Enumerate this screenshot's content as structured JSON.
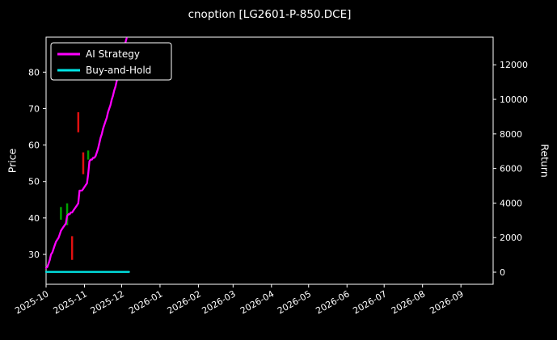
{
  "chart_data": {
    "type": "line",
    "title": "cnoption [LG2601-P-850.DCE]",
    "ylabel_left": "Price",
    "ylabel_right": "Return",
    "background_color": "#000000",
    "axis_color": "#ffffff",
    "grid": false,
    "legend_position": "upper-left",
    "x_tick_labels": [
      "2025-10",
      "2025-11",
      "2025-12",
      "2026-01",
      "2026-02",
      "2026-03",
      "2026-04",
      "2026-05",
      "2026-06",
      "2026-07",
      "2026-08",
      "2026-09"
    ],
    "x_tick_days": [
      0,
      31,
      61,
      92,
      123,
      151,
      182,
      212,
      243,
      273,
      304,
      335
    ],
    "x_domain_days": [
      0,
      361
    ],
    "ylim_left": [
      21.8,
      89.6
    ],
    "yticks_left": [
      30,
      40,
      50,
      60,
      70,
      80
    ],
    "ylim_right": [
      -700,
      13600
    ],
    "yticks_right": [
      0,
      2000,
      4000,
      6000,
      8000,
      10000,
      12000
    ],
    "legend": [
      {
        "label": "AI Strategy",
        "color": "#ff00ff"
      },
      {
        "label": "Buy-and-Hold",
        "color": "#00e5e5"
      }
    ],
    "series": [
      {
        "name": "AI Strategy",
        "color": "#ff00ff",
        "points": [
          [
            0,
            26.3
          ],
          [
            1,
            26.5
          ],
          [
            2,
            27.5
          ],
          [
            3,
            28.5
          ],
          [
            4,
            30
          ],
          [
            5,
            30.5
          ],
          [
            6,
            31.5
          ],
          [
            7,
            32.5
          ],
          [
            8,
            33.5
          ],
          [
            9,
            34
          ],
          [
            10,
            34.5
          ],
          [
            11,
            35.5
          ],
          [
            12,
            36.5
          ],
          [
            13,
            37
          ],
          [
            14,
            37.5
          ],
          [
            15,
            38
          ],
          [
            16,
            38.5
          ],
          [
            17,
            40.5
          ],
          [
            18,
            41
          ],
          [
            19,
            41
          ],
          [
            20,
            41.5
          ],
          [
            21,
            41.5
          ],
          [
            22,
            42
          ],
          [
            23,
            42.5
          ],
          [
            24,
            43
          ],
          [
            25,
            43.5
          ],
          [
            26,
            44
          ],
          [
            27,
            47.5
          ],
          [
            28,
            47.5
          ],
          [
            29,
            47.5
          ],
          [
            30,
            48
          ],
          [
            31,
            48.5
          ],
          [
            32,
            49
          ],
          [
            33,
            49.5
          ],
          [
            34,
            52
          ],
          [
            35,
            55.5
          ],
          [
            36,
            56
          ],
          [
            37,
            56
          ],
          [
            38,
            56.5
          ],
          [
            39,
            56.5
          ],
          [
            40,
            57
          ],
          [
            41,
            58
          ],
          [
            42,
            59
          ],
          [
            43,
            60.5
          ],
          [
            44,
            62
          ],
          [
            45,
            63
          ],
          [
            46,
            64.5
          ],
          [
            47,
            65.5
          ],
          [
            48,
            66.5
          ],
          [
            49,
            67.5
          ],
          [
            50,
            69
          ],
          [
            51,
            70
          ],
          [
            52,
            71
          ],
          [
            53,
            72.5
          ],
          [
            54,
            73.5
          ],
          [
            55,
            75
          ],
          [
            56,
            76
          ],
          [
            57,
            77.5
          ],
          [
            58,
            79
          ],
          [
            59,
            80.5
          ],
          [
            60,
            82
          ],
          [
            61,
            83.5
          ],
          [
            62,
            85
          ],
          [
            63,
            86.5
          ],
          [
            64,
            88
          ],
          [
            65,
            89.3
          ]
        ]
      },
      {
        "name": "Buy-and-Hold",
        "color": "#00e5e5",
        "points": [
          [
            0,
            25.2
          ],
          [
            67,
            25.2
          ]
        ]
      }
    ],
    "candles": [
      {
        "day": 12,
        "low": 39.5,
        "high": 43,
        "color": "#00a000"
      },
      {
        "day": 17,
        "low": 38,
        "high": 44,
        "color": "#00a000"
      },
      {
        "day": 21,
        "low": 28.5,
        "high": 35,
        "color": "#e01010"
      },
      {
        "day": 26,
        "low": 63.5,
        "high": 69,
        "color": "#e01010"
      },
      {
        "day": 30,
        "low": 52,
        "high": 58,
        "color": "#e01010"
      },
      {
        "day": 34,
        "low": 56,
        "high": 58.5,
        "color": "#00a000"
      }
    ]
  }
}
